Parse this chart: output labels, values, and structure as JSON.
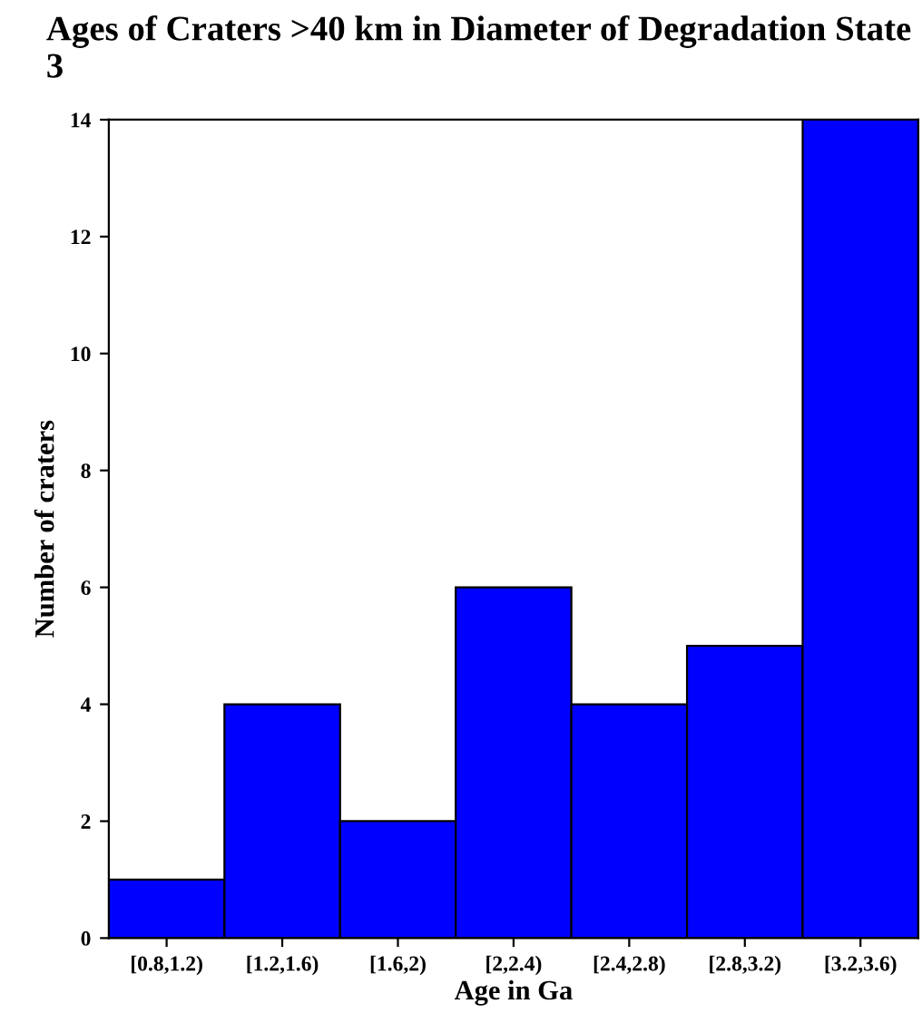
{
  "chart_data": {
    "type": "bar",
    "title": "Ages of Craters >40 km in Diameter of Degradation State 3",
    "xlabel": "Age in Ga",
    "ylabel": "Number of craters",
    "categories": [
      "[0.8,1.2)",
      "[1.2,1.6)",
      "[1.6,2)",
      "[2,2.4)",
      "[2.4,2.8)",
      "[2.8,3.2)",
      "[3.2,3.6)"
    ],
    "values": [
      1,
      4,
      2,
      6,
      4,
      5,
      14
    ],
    "color": "#0000ff",
    "ylim": [
      0,
      14
    ],
    "yticks": [
      0,
      2,
      4,
      6,
      8,
      10,
      12,
      14
    ],
    "grid": false,
    "legend": false
  }
}
